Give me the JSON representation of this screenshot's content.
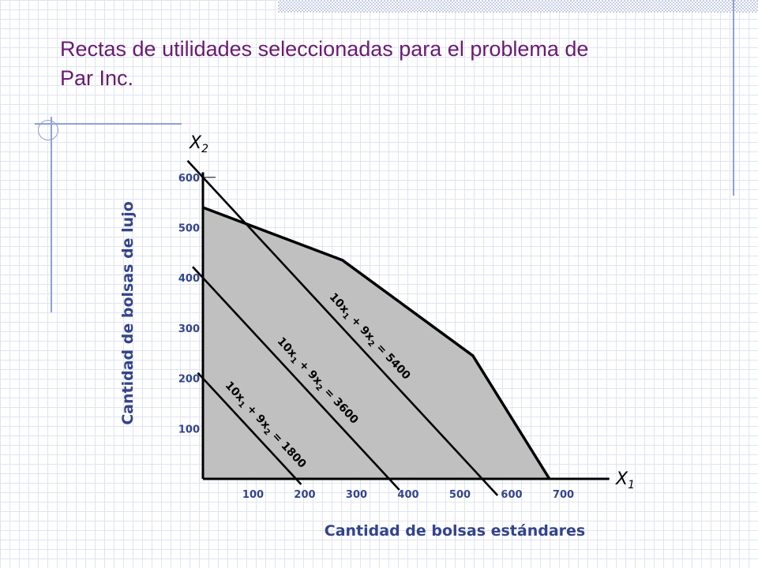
{
  "slide": {
    "title": "Rectas de utilidades seleccionadas para el problema de Par Inc."
  },
  "chart_data": {
    "type": "line",
    "title": "",
    "xlabel": "Cantidad de bolsas estándares",
    "ylabel": "Cantidad de bolsas de lujo",
    "x_axis_name": "X",
    "x_axis_sub": "1",
    "y_axis_name": "X",
    "y_axis_sub": "2",
    "xlim": [
      0,
      740
    ],
    "ylim": [
      0,
      610
    ],
    "x_ticks": [
      100,
      200,
      300,
      400,
      500,
      600,
      700
    ],
    "y_ticks": [
      100,
      200,
      300,
      400,
      500,
      600
    ],
    "grid": false,
    "feasible_region": {
      "fill": "#c0c0c0",
      "vertices": [
        [
          0,
          0
        ],
        [
          0,
          540
        ],
        [
          270,
          435
        ],
        [
          522,
          245
        ],
        [
          670,
          0
        ]
      ]
    },
    "profit_lines": [
      {
        "label_parts": [
          "10x",
          "1",
          " + 9x",
          "2",
          " = 1800"
        ],
        "points": [
          [
            0,
            200
          ],
          [
            180,
            0
          ]
        ]
      },
      {
        "label_parts": [
          "10x",
          "1",
          " + 9x",
          "2",
          " = 3600"
        ],
        "points": [
          [
            0,
            400
          ],
          [
            360,
            0
          ]
        ]
      },
      {
        "label_parts": [
          "10x",
          "1",
          " + 9x",
          "2",
          " = 5400"
        ],
        "points": [
          [
            0,
            600
          ],
          [
            540,
            0
          ]
        ]
      }
    ],
    "colors": {
      "ticks": "#33448c",
      "axis_titles": "#33448c",
      "title": "#6a1a73",
      "lines": "#000000"
    }
  }
}
